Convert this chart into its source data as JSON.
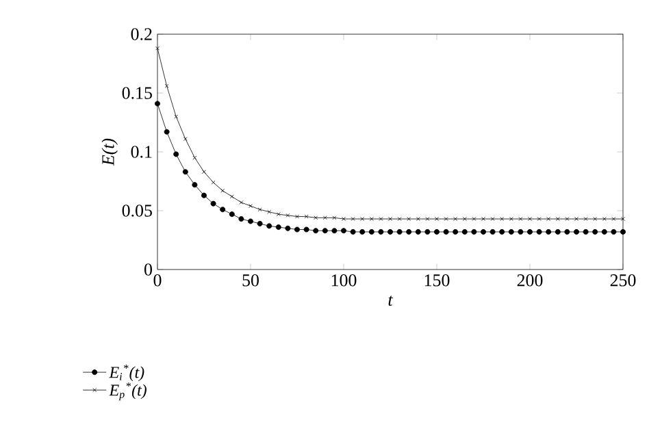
{
  "chart_data": {
    "type": "line",
    "xlabel": "t",
    "ylabel": "E(t)",
    "xlim": [
      0,
      250
    ],
    "ylim": [
      0,
      0.2
    ],
    "xticks": [
      0,
      50,
      100,
      150,
      200,
      250
    ],
    "yticks": [
      0,
      0.05,
      0.1,
      0.15,
      0.2
    ],
    "legend": "bottom left",
    "line_style": "solid",
    "x": [
      0,
      5,
      10,
      15,
      20,
      25,
      30,
      35,
      40,
      45,
      50,
      55,
      60,
      65,
      70,
      75,
      80,
      85,
      90,
      95,
      100,
      105,
      110,
      115,
      120,
      125,
      130,
      135,
      140,
      145,
      150,
      155,
      160,
      165,
      170,
      175,
      180,
      185,
      190,
      195,
      200,
      205,
      210,
      215,
      220,
      225,
      230,
      235,
      240,
      245,
      250
    ],
    "series": [
      {
        "name": "E$_{i}$$^{*}$(t)",
        "color": "#000000",
        "marker": "circle",
        "values": [
          0.141,
          0.117,
          0.098,
          0.083,
          0.072,
          0.063,
          0.056,
          0.051,
          0.047,
          0.043,
          0.041,
          0.039,
          0.037,
          0.036,
          0.035,
          0.034,
          0.034,
          0.033,
          0.033,
          0.033,
          0.033,
          0.032,
          0.032,
          0.032,
          0.032,
          0.032,
          0.032,
          0.032,
          0.032,
          0.032,
          0.032,
          0.032,
          0.032,
          0.032,
          0.032,
          0.032,
          0.032,
          0.032,
          0.032,
          0.032,
          0.032,
          0.032,
          0.032,
          0.032,
          0.032,
          0.032,
          0.032,
          0.032,
          0.032,
          0.032,
          0.032
        ]
      },
      {
        "name": "E$_{p}$$^{*}$(t)",
        "color": "#000000",
        "marker": "cross",
        "values": [
          0.188,
          0.156,
          0.13,
          0.111,
          0.095,
          0.083,
          0.074,
          0.067,
          0.062,
          0.057,
          0.054,
          0.051,
          0.049,
          0.047,
          0.046,
          0.045,
          0.045,
          0.044,
          0.044,
          0.044,
          0.043,
          0.043,
          0.043,
          0.043,
          0.043,
          0.043,
          0.043,
          0.043,
          0.043,
          0.043,
          0.043,
          0.043,
          0.043,
          0.043,
          0.043,
          0.043,
          0.043,
          0.043,
          0.043,
          0.043,
          0.043,
          0.043,
          0.043,
          0.043,
          0.043,
          0.043,
          0.043,
          0.043,
          0.043,
          0.043,
          0.043
        ]
      }
    ]
  }
}
